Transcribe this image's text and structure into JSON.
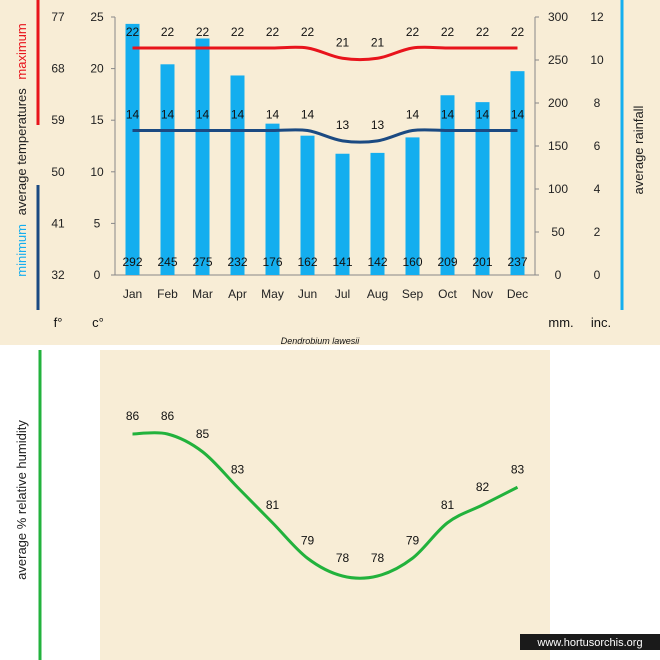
{
  "colors": {
    "background": "#f8edd6",
    "bar": "#14aeef",
    "max_line": "#e8141c",
    "min_line": "#1b4a82",
    "humidity_line": "#22b23c",
    "temp_axis_max": "#e8141c",
    "temp_axis_min": "#1b4a82",
    "rain_axis": "#14aeef",
    "humidity_axis": "#22b23c"
  },
  "labels": {
    "maximum": "maximum",
    "minimum": "minimum",
    "average_temperatures": "average  temperatures",
    "average_rainfall": "average  rainfall",
    "unit_f": "f°",
    "unit_c": "c°",
    "unit_mm": "mm.",
    "unit_inc": "inc.",
    "species": "Dendrobium  lawesii",
    "humidity_title": "average %  relative humidity",
    "watermark": "www.hortusorchis.org"
  },
  "chart_data": [
    {
      "type": "bar",
      "title": "Dendrobium lawesii",
      "categories": [
        "Jan",
        "Feb",
        "Mar",
        "Apr",
        "May",
        "Jun",
        "Jul",
        "Aug",
        "Sep",
        "Oct",
        "Nov",
        "Dec"
      ],
      "series": [
        {
          "name": "average rainfall (mm)",
          "values": [
            292,
            245,
            275,
            232,
            176,
            162,
            141,
            142,
            160,
            209,
            201,
            237
          ]
        },
        {
          "name": "maximum temperature (°C)",
          "values": [
            22,
            22,
            22,
            22,
            22,
            22,
            21,
            21,
            22,
            22,
            22,
            22
          ]
        },
        {
          "name": "minimum temperature (°C)",
          "values": [
            14,
            14,
            14,
            14,
            14,
            14,
            13,
            13,
            14,
            14,
            14,
            14
          ]
        }
      ],
      "axes": {
        "celsius": {
          "ticks": [
            0,
            5,
            10,
            15,
            20,
            25
          ],
          "range": [
            0,
            25
          ]
        },
        "fahrenheit": {
          "ticks": [
            32,
            41,
            50,
            59,
            68,
            77
          ]
        },
        "rainfall_mm": {
          "ticks": [
            0,
            50,
            100,
            150,
            200,
            250,
            300
          ],
          "range": [
            0,
            300
          ]
        },
        "rainfall_inch": {
          "ticks": [
            0,
            2,
            4,
            6,
            8,
            10,
            12
          ]
        }
      }
    },
    {
      "type": "line",
      "title": "average % relative humidity",
      "categories": [
        "Jan",
        "Feb",
        "Mar",
        "Apr",
        "May",
        "Jun",
        "Jul",
        "Aug",
        "Sep",
        "Oct",
        "Nov",
        "Dec"
      ],
      "values": [
        86,
        86,
        85,
        83,
        81,
        79,
        78,
        78,
        79,
        81,
        82,
        83
      ]
    }
  ]
}
